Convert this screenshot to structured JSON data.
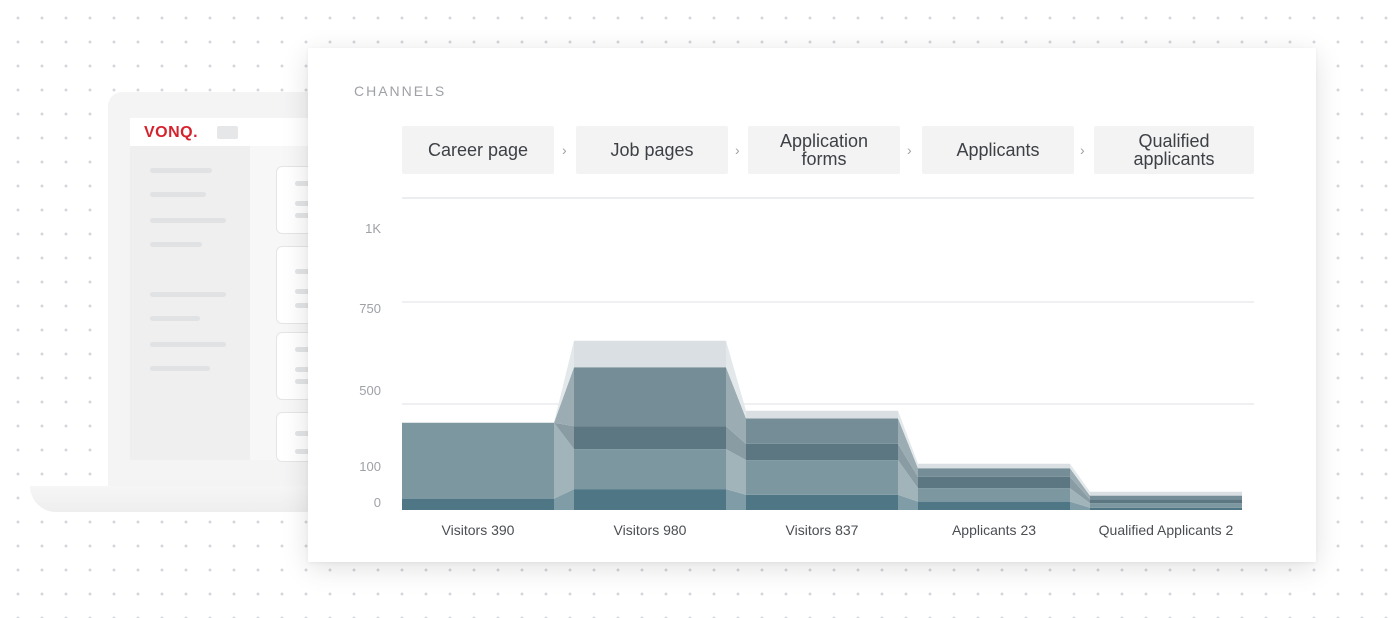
{
  "background_app": {
    "logo": "VONQ."
  },
  "panel": {
    "title": "CHANNELS",
    "stages": [
      {
        "label": "Career page"
      },
      {
        "label": "Job pages"
      },
      {
        "label": "Application forms"
      },
      {
        "label": "Applicants"
      },
      {
        "label": "Qualified applicants"
      }
    ],
    "chevron": "›"
  },
  "colors": {
    "series": [
      "#4e7685",
      "#7d97a0",
      "#5c7782",
      "#758d96",
      "#d9dfe3"
    ]
  },
  "chart_data": {
    "type": "area",
    "title": "",
    "xlabel": "",
    "ylabel": "",
    "categories": [
      "Visitors 390",
      "Visitors 980",
      "Visitors 837",
      "Applicants 23",
      "Qualified Applicants 2"
    ],
    "y_ticks": [
      {
        "label": "1K",
        "value": 1000
      },
      {
        "label": "750",
        "value": 750
      },
      {
        "label": "500",
        "value": 500
      },
      {
        "label": "100",
        "value": 100
      },
      {
        "label": "0",
        "value": 0
      }
    ],
    "ylim": [
      0,
      1000
    ],
    "grid": true,
    "series": [
      {
        "values": [
          30,
          55,
          40,
          22,
          6
        ]
      },
      {
        "values": [
          360,
          180,
          130,
          35,
          12
        ]
      },
      {
        "values": [
          0,
          135,
          95,
          30,
          10
        ]
      },
      {
        "values": [
          0,
          220,
          150,
          35,
          10
        ]
      },
      {
        "values": [
          0,
          65,
          45,
          27,
          10
        ]
      }
    ]
  }
}
